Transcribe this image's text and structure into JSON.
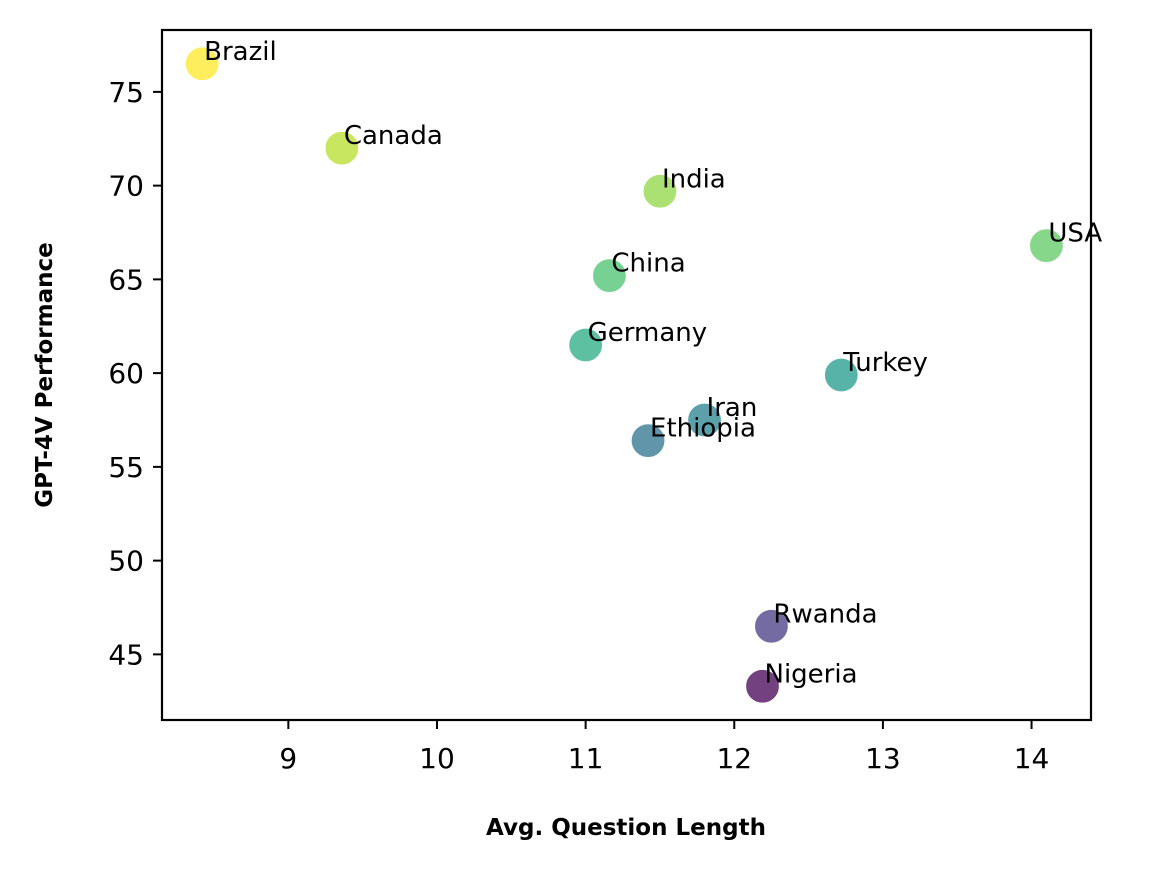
{
  "chart_data": {
    "type": "scatter",
    "title": "",
    "xlabel": "Avg. Question Length",
    "ylabel": "GPT-4V Performance",
    "xlim": [
      8.15,
      14.4
    ],
    "ylim": [
      41.5,
      78.3
    ],
    "xticks": [
      9,
      10,
      11,
      12,
      13,
      14
    ],
    "yticks": [
      45,
      50,
      55,
      60,
      65,
      70,
      75
    ],
    "grid": false,
    "legend": "none",
    "points": [
      {
        "label": "Brazil",
        "x": 8.42,
        "y": 76.5,
        "color": "#fde725"
      },
      {
        "label": "Canada",
        "x": 9.36,
        "y": 72.0,
        "color": "#b5de2b"
      },
      {
        "label": "India",
        "x": 11.5,
        "y": 69.7,
        "color": "#8fd744"
      },
      {
        "label": "USA",
        "x": 14.1,
        "y": 66.8,
        "color": "#5ec962"
      },
      {
        "label": "China",
        "x": 11.16,
        "y": 65.2,
        "color": "#4ac16d"
      },
      {
        "label": "Germany",
        "x": 11.0,
        "y": 61.5,
        "color": "#25ab82"
      },
      {
        "label": "Turkey",
        "x": 12.72,
        "y": 59.9,
        "color": "#1f9a8a"
      },
      {
        "label": "Iran",
        "x": 11.8,
        "y": 57.5,
        "color": "#26828e"
      },
      {
        "label": "Ethiopia",
        "x": 11.42,
        "y": 56.4,
        "color": "#2c728e"
      },
      {
        "label": "Rwanda",
        "x": 12.25,
        "y": 46.5,
        "color": "#443983"
      },
      {
        "label": "Nigeria",
        "x": 12.19,
        "y": 43.3,
        "color": "#440154"
      }
    ]
  }
}
